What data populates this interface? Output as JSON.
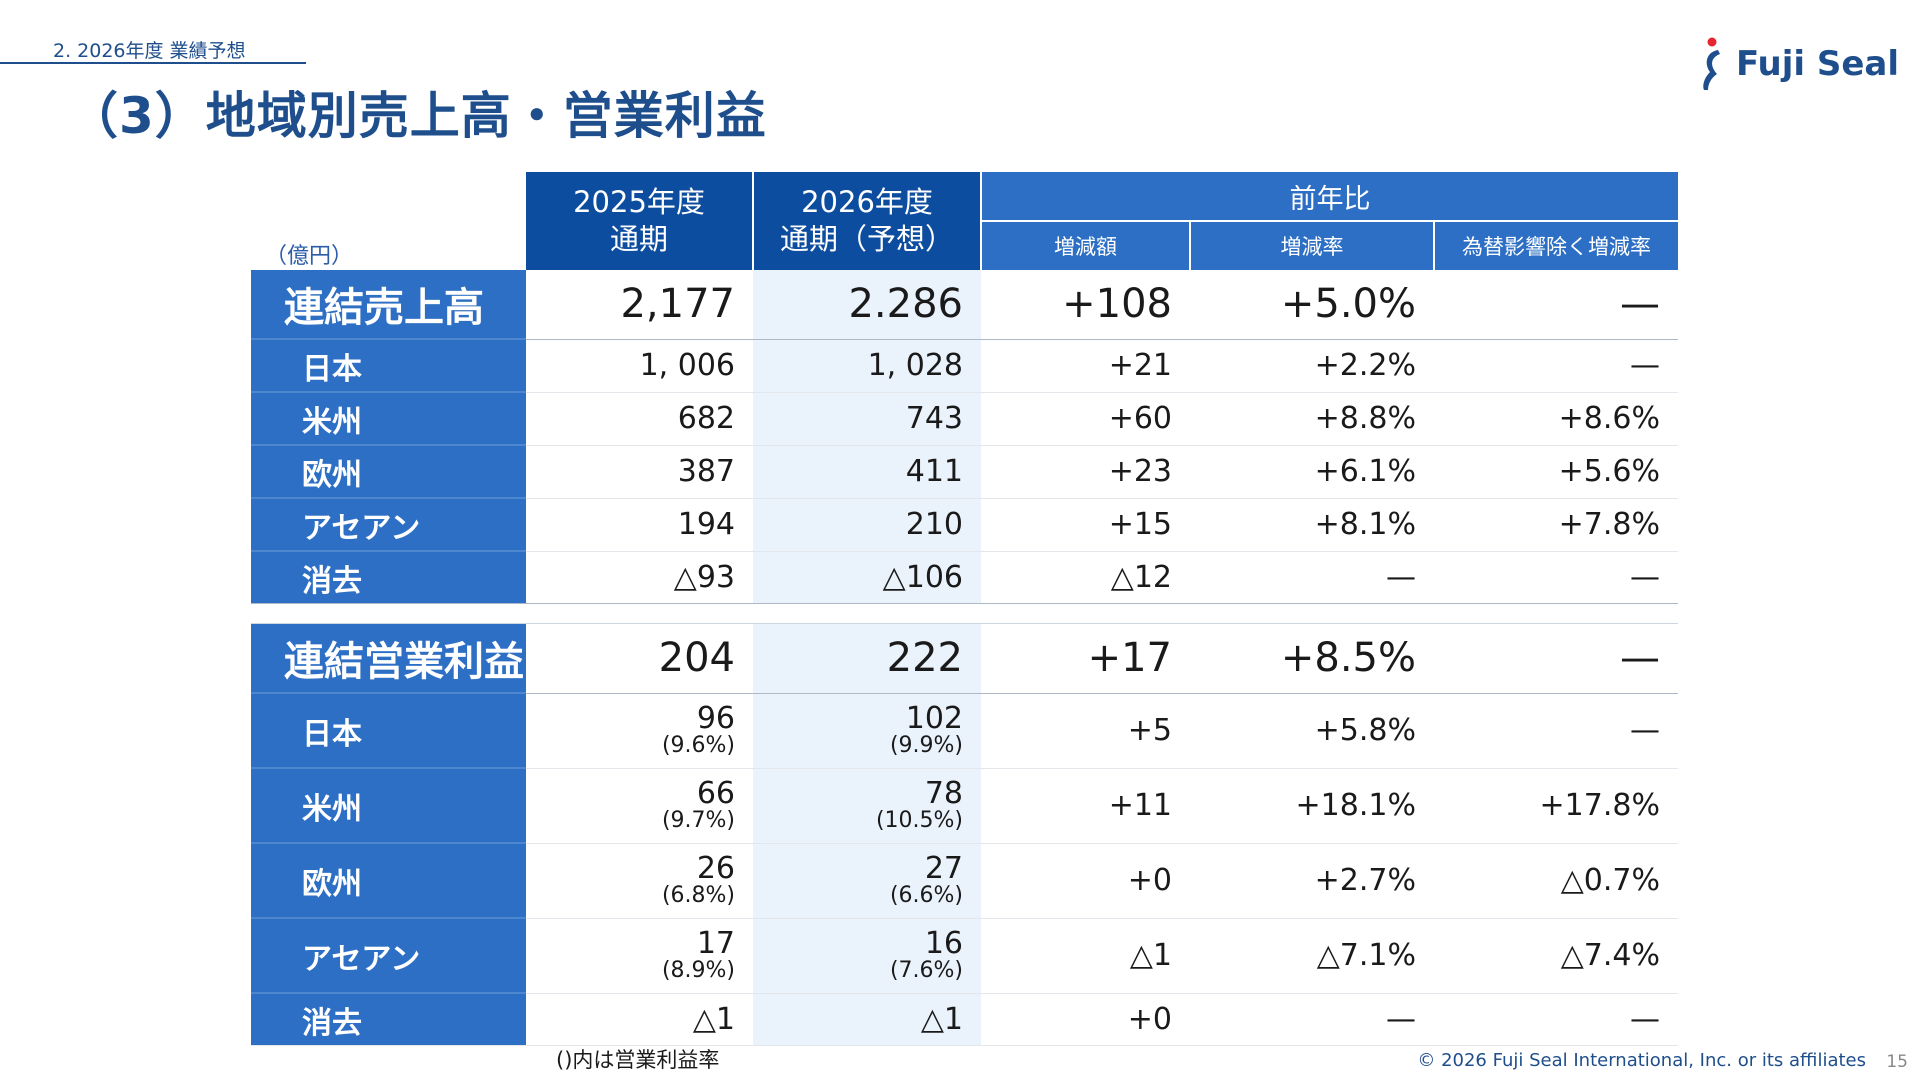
{
  "header": {
    "section": "2. 2026年度 業績予想",
    "title": "（3）地域別売上高・営業利益",
    "logo_text": "Fuji Seal"
  },
  "table": {
    "unit": "（億円）",
    "col_2025": [
      "2025年度",
      "通期"
    ],
    "col_2026": [
      "2026年度",
      "通期（予想）"
    ],
    "yoy": "前年比",
    "yoy_sub": [
      "増減額",
      "増減率",
      "為替影響除く増減率"
    ],
    "sales_total": {
      "label": "連結売上高",
      "v2025": "2,177",
      "v2026": "2.286",
      "diff": "+108",
      "rate": "+5.0%",
      "fx": "—"
    },
    "sales_rows": [
      {
        "label": "日本",
        "v2025": "1, 006",
        "v2026": "1, 028",
        "diff": "+21",
        "rate": "+2.2%",
        "fx": "—"
      },
      {
        "label": "米州",
        "v2025": "682",
        "v2026": "743",
        "diff": "+60",
        "rate": "+8.8%",
        "fx": "+8.6%"
      },
      {
        "label": "欧州",
        "v2025": "387",
        "v2026": "411",
        "diff": "+23",
        "rate": "+6.1%",
        "fx": "+5.6%"
      },
      {
        "label": "アセアン",
        "v2025": "194",
        "v2026": "210",
        "diff": "+15",
        "rate": "+8.1%",
        "fx": "+7.8%"
      },
      {
        "label": "消去",
        "v2025": "△93",
        "v2026": "△106",
        "diff": "△12",
        "rate": "—",
        "fx": "—"
      }
    ],
    "op_total": {
      "label": "連結営業利益",
      "v2025": "204",
      "v2026": "222",
      "diff": "+17",
      "rate": "+8.5%",
      "fx": "—"
    },
    "op_rows": [
      {
        "label": "日本",
        "v2025": "96",
        "p2025": "(9.6%)",
        "v2026": "102",
        "p2026": "(9.9%)",
        "diff": "+5",
        "rate": "+5.8%",
        "fx": "—"
      },
      {
        "label": "米州",
        "v2025": "66",
        "p2025": "(9.7%)",
        "v2026": "78",
        "p2026": "(10.5%)",
        "diff": "+11",
        "rate": "+18.1%",
        "fx": "+17.8%"
      },
      {
        "label": "欧州",
        "v2025": "26",
        "p2025": "(6.8%)",
        "v2026": "27",
        "p2026": "(6.6%)",
        "diff": "+0",
        "rate": "+2.7%",
        "fx": "△0.7%"
      },
      {
        "label": "アセアン",
        "v2025": "17",
        "p2025": "(8.9%)",
        "v2026": "16",
        "p2026": "(7.6%)",
        "diff": "△1",
        "rate": "△7.1%",
        "fx": "△7.4%"
      }
    ],
    "op_elim": {
      "label": "消去",
      "v2025": "△1",
      "v2026": "△1",
      "diff": "+0",
      "rate": "—",
      "fx": "—"
    }
  },
  "footer": {
    "note": "()内は営業利益率",
    "copyright": "© 2026 Fuji Seal International, Inc. or its affiliates",
    "page": "15"
  },
  "colors": {
    "navy": "#0d4d9f",
    "blue": "#2d6fc4",
    "shade": "#eaf2fc",
    "title": "#1f4e8c"
  },
  "icons": {
    "logo": "fuji-seal-logo-icon"
  }
}
